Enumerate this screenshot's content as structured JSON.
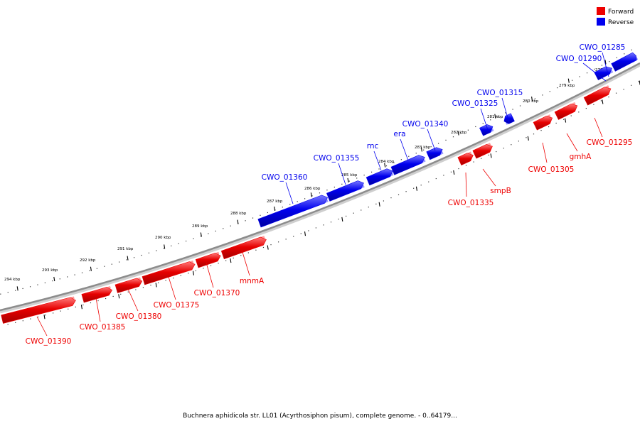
{
  "colors": {
    "forward": "#ee0000",
    "reverse": "#0000ee",
    "backbone": "#8c8c8c"
  },
  "legend": {
    "forward_label": "Forward",
    "reverse_label": "Reverse"
  },
  "caption": "Buchnera aphidicola str. LL01 (Acyrthosiphon pisum), complete genome. - 0..64179...",
  "kbp_ticks": [
    "278 kbp",
    "279 kbp",
    "280 kbp",
    "281 kbp",
    "282 kbp",
    "283 kbp",
    "284 kbp",
    "285 kbp",
    "286 kbp",
    "287 kbp",
    "288 kbp",
    "289 kbp",
    "290 kbp",
    "291 kbp",
    "292 kbp",
    "293 kbp",
    "294 kbp"
  ],
  "genes": [
    {
      "name": "CWO_01285",
      "strand": "reverse"
    },
    {
      "name": "CWO_01290",
      "strand": "reverse"
    },
    {
      "name": "CWO_01295",
      "strand": "forward"
    },
    {
      "name": "gmhA",
      "strand": "forward"
    },
    {
      "name": "CWO_01305",
      "strand": "forward"
    },
    {
      "name": "CWO_01315",
      "strand": "reverse"
    },
    {
      "name": "CWO_01325",
      "strand": "reverse"
    },
    {
      "name": "smpB",
      "strand": "forward"
    },
    {
      "name": "CWO_01335",
      "strand": "forward"
    },
    {
      "name": "CWO_01340",
      "strand": "reverse"
    },
    {
      "name": "era",
      "strand": "reverse"
    },
    {
      "name": "rnc",
      "strand": "reverse"
    },
    {
      "name": "CWO_01355",
      "strand": "reverse"
    },
    {
      "name": "CWO_01360",
      "strand": "reverse"
    },
    {
      "name": "mnmA",
      "strand": "forward"
    },
    {
      "name": "CWO_01370",
      "strand": "forward"
    },
    {
      "name": "CWO_01375",
      "strand": "forward"
    },
    {
      "name": "CWO_01380",
      "strand": "forward"
    },
    {
      "name": "CWO_01385",
      "strand": "forward"
    },
    {
      "name": "CWO_01390",
      "strand": "forward"
    }
  ]
}
